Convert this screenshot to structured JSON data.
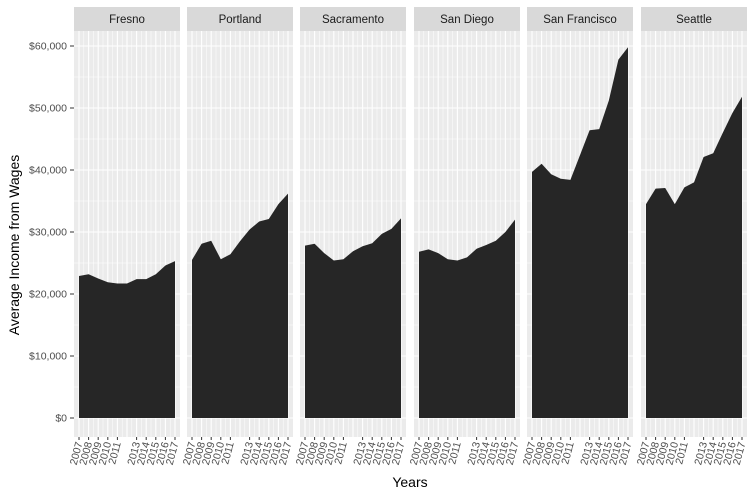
{
  "chart_data": {
    "type": "area",
    "xlabel": "Years",
    "ylabel": "Average Income from Wages",
    "ylim": [
      0,
      62000
    ],
    "y_ticks": [
      0,
      10000,
      20000,
      30000,
      40000,
      50000,
      60000
    ],
    "y_tick_labels": [
      "$0",
      "$10,000",
      "$20,000",
      "$30,000",
      "$40,000",
      "$50,000",
      "$60,000"
    ],
    "x": [
      2007,
      2008,
      2009,
      2010,
      2011,
      2012,
      2013,
      2014,
      2015,
      2016,
      2017
    ],
    "x_tick_labels": [
      "2007",
      "2008",
      "2009",
      "2010",
      "2011",
      "2013",
      "2014",
      "2015",
      "2016",
      "2017"
    ],
    "x_tick_years": [
      2007,
      2008,
      2009,
      2010,
      2011,
      2013,
      2014,
      2015,
      2016,
      2017
    ],
    "facets": [
      "Fresno",
      "Portland",
      "Sacramento",
      "San Diego",
      "San Francisco",
      "Seattle"
    ],
    "grid": true,
    "series": [
      {
        "name": "Fresno",
        "values": [
          22900,
          23200,
          22500,
          21900,
          21700,
          21700,
          22400,
          22400,
          23200,
          24600,
          25300
        ]
      },
      {
        "name": "Portland",
        "values": [
          25500,
          28100,
          28600,
          25600,
          26400,
          28500,
          30400,
          31700,
          32100,
          34500,
          36200
        ]
      },
      {
        "name": "Sacramento",
        "values": [
          27800,
          28100,
          26600,
          25400,
          25600,
          26900,
          27700,
          28200,
          29700,
          30500,
          32200
        ]
      },
      {
        "name": "San Diego",
        "values": [
          26800,
          27200,
          26600,
          25600,
          25400,
          25900,
          27300,
          27900,
          28600,
          30000,
          32000
        ]
      },
      {
        "name": "San Francisco",
        "values": [
          39700,
          41000,
          39300,
          38600,
          38400,
          42400,
          46400,
          46600,
          51200,
          57800,
          59800
        ]
      },
      {
        "name": "Seattle",
        "values": [
          34500,
          37000,
          37100,
          34500,
          37200,
          38000,
          42100,
          42700,
          46000,
          49200,
          51800
        ]
      }
    ],
    "colors": {
      "panel_bg": "#ebebeb",
      "strip_bg": "#d9d9d9",
      "grid": "#ffffff",
      "area": "#262626"
    }
  }
}
